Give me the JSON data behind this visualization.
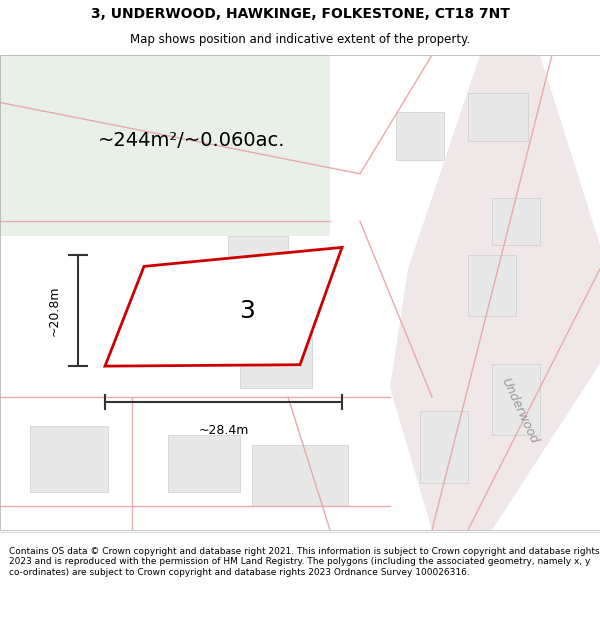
{
  "title_line1": "3, UNDERWOOD, HAWKINGE, FOLKESTONE, CT18 7NT",
  "title_line2": "Map shows position and indicative extent of the property.",
  "area_text": "~244m²/~0.060ac.",
  "dim_width": "~28.4m",
  "dim_height": "~20.8m",
  "label_number": "3",
  "road_label": "Underwood",
  "footer_text": "Contains OS data © Crown copyright and database right 2021. This information is subject to Crown copyright and database rights 2023 and is reproduced with the permission of HM Land Registry. The polygons (including the associated geometry, namely x, y co-ordinates) are subject to Crown copyright and database rights 2023 Ordnance Survey 100026316.",
  "bg_map_color": "#f5f5f0",
  "green_area_color": "#e8f0e8",
  "plot_fill_color": "#ffffff",
  "plot_edge_color": "#cc0000",
  "road_lines_color": "#e8aaaa",
  "building_color": "#e8e8e8",
  "road_bg_color": "#f0e8e8",
  "title_bg_color": "#ffffff",
  "footer_bg_color": "#ffffff",
  "dim_line_color": "#333333",
  "figsize": [
    6.0,
    6.25
  ],
  "dpi": 100
}
